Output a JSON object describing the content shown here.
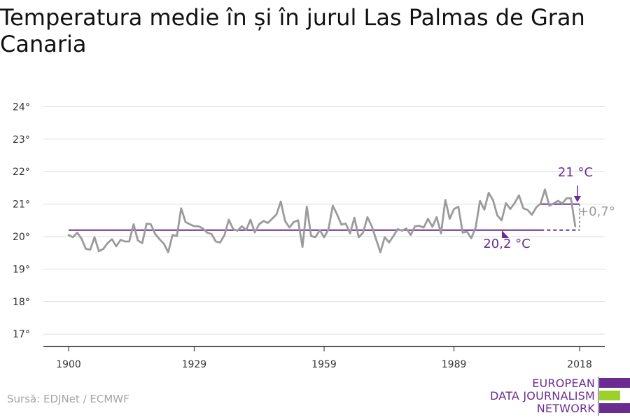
{
  "page": {
    "title": "Temperatura medie în și în jurul Las Palmas de Gran Canaria",
    "source": "Sursă: EDJNet / ECMWF"
  },
  "logo": {
    "lines": [
      "EUROPEAN",
      "DATA JOURNALISM",
      "NETWORK"
    ],
    "colors": {
      "purple": "#6b2c91",
      "green": "#9bd12b"
    }
  },
  "chart_data": {
    "type": "line",
    "title": "Temperatura medie în și în jurul Las Palmas de Gran Canaria",
    "xlabel": "",
    "ylabel": "",
    "xlim": [
      1894,
      2025
    ],
    "ylim": [
      16.6,
      24.4
    ],
    "x_ticks": [
      1900,
      1929,
      1959,
      1989,
      2018
    ],
    "y_ticks": [
      17,
      18,
      19,
      20,
      21,
      22,
      23,
      24
    ],
    "y_tick_suffix": "°",
    "grid": true,
    "series": [
      {
        "color": "#9b9b9b",
        "x_start": 1900,
        "values": [
          20.05,
          19.98,
          20.12,
          19.93,
          19.62,
          19.6,
          19.98,
          19.55,
          19.62,
          19.8,
          19.92,
          19.7,
          19.9,
          19.85,
          19.85,
          20.38,
          19.88,
          19.8,
          20.4,
          20.38,
          20.08,
          19.92,
          19.78,
          19.52,
          20.05,
          20.02,
          20.87,
          20.45,
          20.38,
          20.32,
          20.32,
          20.25,
          20.12,
          20.08,
          19.85,
          19.82,
          20.05,
          20.52,
          20.23,
          20.18,
          20.32,
          20.2,
          20.52,
          20.13,
          20.38,
          20.48,
          20.42,
          20.55,
          20.68,
          21.08,
          20.48,
          20.28,
          20.45,
          20.5,
          19.68,
          20.92,
          20.02,
          19.98,
          20.2,
          19.98,
          20.22,
          20.95,
          20.68,
          20.37,
          20.4,
          20.1,
          20.58,
          19.98,
          20.12,
          20.6,
          20.32,
          19.92,
          19.52,
          19.98,
          19.82,
          20.02,
          20.23,
          20.18,
          20.25,
          20.05,
          20.32,
          20.33,
          20.28,
          20.55,
          20.3,
          20.6,
          20.1,
          21.13,
          20.55,
          20.85,
          20.92,
          20.12,
          20.15,
          19.95,
          20.28,
          21.1,
          20.83,
          21.35,
          21.12,
          20.65,
          20.5,
          21.03,
          20.85,
          21.03,
          21.27,
          20.87,
          20.82,
          20.67,
          20.9,
          21.02,
          21.45,
          20.95,
          21.02,
          21.1,
          21.02,
          21.18,
          21.18,
          20.32
        ]
      }
    ],
    "reference_lines": [
      {
        "value": 20.2,
        "x_from": 1900,
        "x_to": 2018,
        "label": "20,2 °C",
        "color": "#6b2c91"
      },
      {
        "value": 21.0,
        "x_from": 2009,
        "x_to": 2018,
        "label": "21 °C",
        "color": "#6b2c91"
      }
    ],
    "difference_annotation": {
      "label": "+0,7°",
      "color": "#9b9b9b"
    }
  }
}
